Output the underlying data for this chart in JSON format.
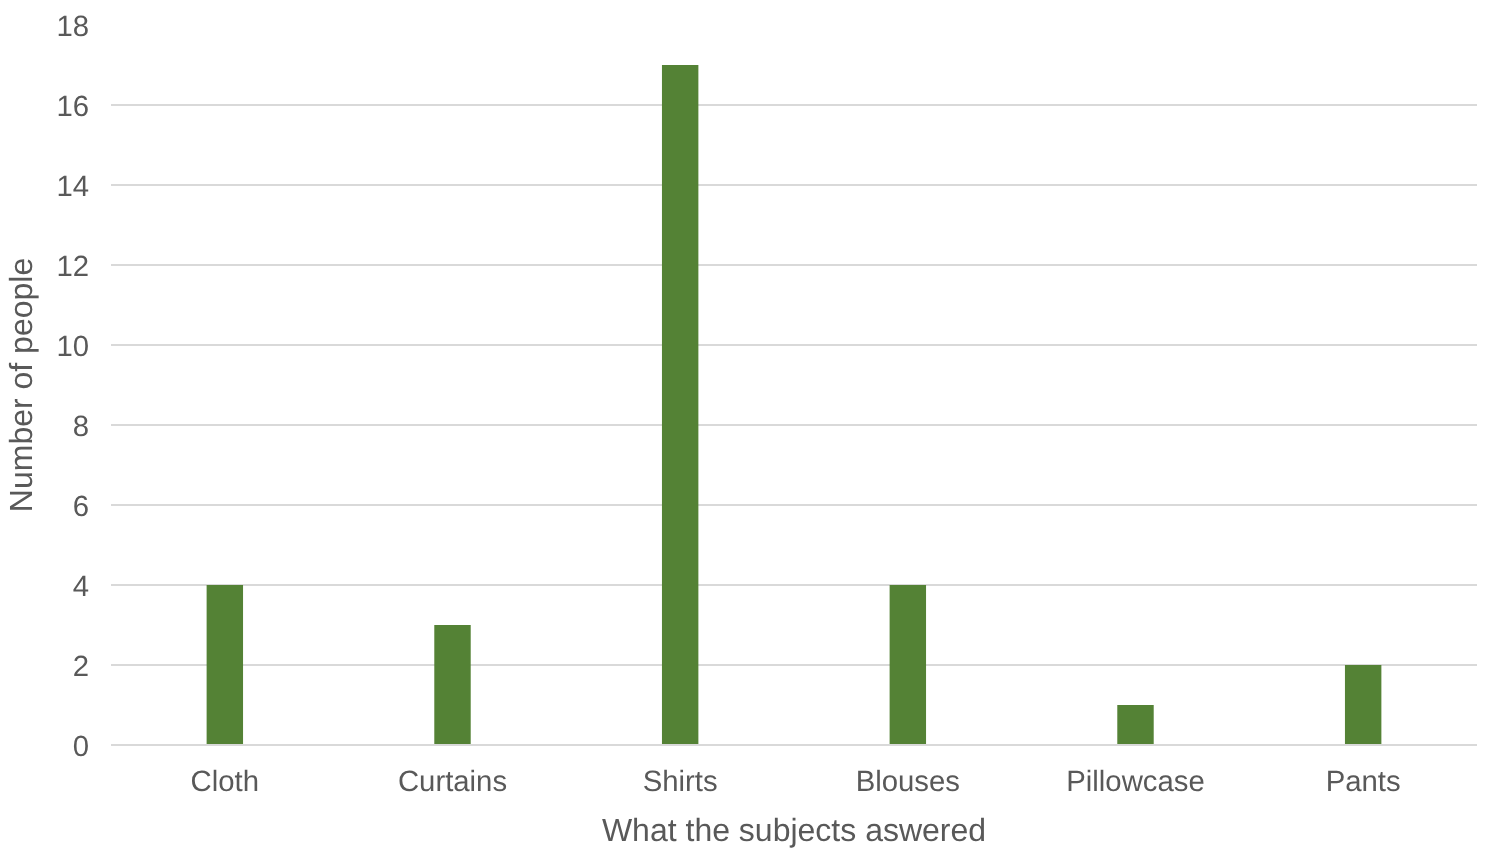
{
  "chart_data": {
    "type": "bar",
    "xlabel": "What the subjects aswered",
    "ylabel": "Number of people",
    "categories": [
      "Cloth",
      "Curtains",
      "Shirts",
      "Blouses",
      "Pillowcase",
      "Pants"
    ],
    "values": [
      4,
      3,
      17,
      4,
      1,
      2
    ],
    "color": "#548235",
    "ylim": [
      0,
      18
    ],
    "yticks": [
      0,
      2,
      4,
      6,
      8,
      10,
      12,
      14,
      16,
      18
    ],
    "grid": "y"
  }
}
